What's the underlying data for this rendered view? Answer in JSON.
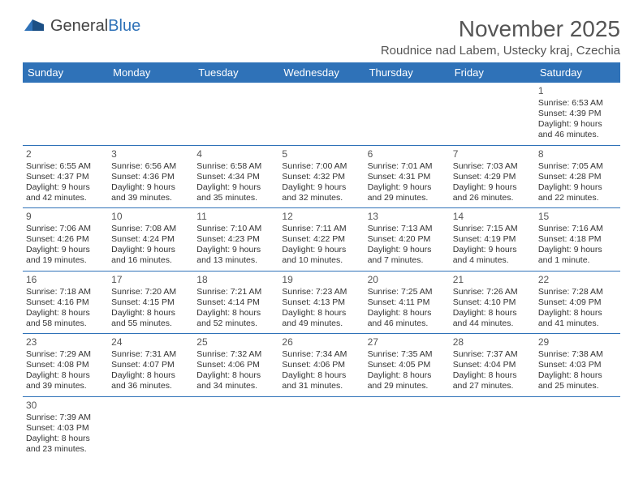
{
  "logo": {
    "text1": "General",
    "text2": "Blue"
  },
  "title": "November 2025",
  "subtitle": "Roudnice nad Labem, Ustecky kraj, Czechia",
  "colors": {
    "header_bg": "#2f72b8",
    "header_fg": "#ffffff",
    "border": "#2f72b8",
    "text": "#333333",
    "title_color": "#555555"
  },
  "dayHeaders": [
    "Sunday",
    "Monday",
    "Tuesday",
    "Wednesday",
    "Thursday",
    "Friday",
    "Saturday"
  ],
  "weeks": [
    [
      null,
      null,
      null,
      null,
      null,
      null,
      {
        "n": "1",
        "sunrise": "6:53 AM",
        "sunset": "4:39 PM",
        "daylight": "9 hours and 46 minutes."
      }
    ],
    [
      {
        "n": "2",
        "sunrise": "6:55 AM",
        "sunset": "4:37 PM",
        "daylight": "9 hours and 42 minutes."
      },
      {
        "n": "3",
        "sunrise": "6:56 AM",
        "sunset": "4:36 PM",
        "daylight": "9 hours and 39 minutes."
      },
      {
        "n": "4",
        "sunrise": "6:58 AM",
        "sunset": "4:34 PM",
        "daylight": "9 hours and 35 minutes."
      },
      {
        "n": "5",
        "sunrise": "7:00 AM",
        "sunset": "4:32 PM",
        "daylight": "9 hours and 32 minutes."
      },
      {
        "n": "6",
        "sunrise": "7:01 AM",
        "sunset": "4:31 PM",
        "daylight": "9 hours and 29 minutes."
      },
      {
        "n": "7",
        "sunrise": "7:03 AM",
        "sunset": "4:29 PM",
        "daylight": "9 hours and 26 minutes."
      },
      {
        "n": "8",
        "sunrise": "7:05 AM",
        "sunset": "4:28 PM",
        "daylight": "9 hours and 22 minutes."
      }
    ],
    [
      {
        "n": "9",
        "sunrise": "7:06 AM",
        "sunset": "4:26 PM",
        "daylight": "9 hours and 19 minutes."
      },
      {
        "n": "10",
        "sunrise": "7:08 AM",
        "sunset": "4:24 PM",
        "daylight": "9 hours and 16 minutes."
      },
      {
        "n": "11",
        "sunrise": "7:10 AM",
        "sunset": "4:23 PM",
        "daylight": "9 hours and 13 minutes."
      },
      {
        "n": "12",
        "sunrise": "7:11 AM",
        "sunset": "4:22 PM",
        "daylight": "9 hours and 10 minutes."
      },
      {
        "n": "13",
        "sunrise": "7:13 AM",
        "sunset": "4:20 PM",
        "daylight": "9 hours and 7 minutes."
      },
      {
        "n": "14",
        "sunrise": "7:15 AM",
        "sunset": "4:19 PM",
        "daylight": "9 hours and 4 minutes."
      },
      {
        "n": "15",
        "sunrise": "7:16 AM",
        "sunset": "4:18 PM",
        "daylight": "9 hours and 1 minute."
      }
    ],
    [
      {
        "n": "16",
        "sunrise": "7:18 AM",
        "sunset": "4:16 PM",
        "daylight": "8 hours and 58 minutes."
      },
      {
        "n": "17",
        "sunrise": "7:20 AM",
        "sunset": "4:15 PM",
        "daylight": "8 hours and 55 minutes."
      },
      {
        "n": "18",
        "sunrise": "7:21 AM",
        "sunset": "4:14 PM",
        "daylight": "8 hours and 52 minutes."
      },
      {
        "n": "19",
        "sunrise": "7:23 AM",
        "sunset": "4:13 PM",
        "daylight": "8 hours and 49 minutes."
      },
      {
        "n": "20",
        "sunrise": "7:25 AM",
        "sunset": "4:11 PM",
        "daylight": "8 hours and 46 minutes."
      },
      {
        "n": "21",
        "sunrise": "7:26 AM",
        "sunset": "4:10 PM",
        "daylight": "8 hours and 44 minutes."
      },
      {
        "n": "22",
        "sunrise": "7:28 AM",
        "sunset": "4:09 PM",
        "daylight": "8 hours and 41 minutes."
      }
    ],
    [
      {
        "n": "23",
        "sunrise": "7:29 AM",
        "sunset": "4:08 PM",
        "daylight": "8 hours and 39 minutes."
      },
      {
        "n": "24",
        "sunrise": "7:31 AM",
        "sunset": "4:07 PM",
        "daylight": "8 hours and 36 minutes."
      },
      {
        "n": "25",
        "sunrise": "7:32 AM",
        "sunset": "4:06 PM",
        "daylight": "8 hours and 34 minutes."
      },
      {
        "n": "26",
        "sunrise": "7:34 AM",
        "sunset": "4:06 PM",
        "daylight": "8 hours and 31 minutes."
      },
      {
        "n": "27",
        "sunrise": "7:35 AM",
        "sunset": "4:05 PM",
        "daylight": "8 hours and 29 minutes."
      },
      {
        "n": "28",
        "sunrise": "7:37 AM",
        "sunset": "4:04 PM",
        "daylight": "8 hours and 27 minutes."
      },
      {
        "n": "29",
        "sunrise": "7:38 AM",
        "sunset": "4:03 PM",
        "daylight": "8 hours and 25 minutes."
      }
    ],
    [
      {
        "n": "30",
        "sunrise": "7:39 AM",
        "sunset": "4:03 PM",
        "daylight": "8 hours and 23 minutes."
      },
      null,
      null,
      null,
      null,
      null,
      null
    ]
  ],
  "labels": {
    "sunrise": "Sunrise: ",
    "sunset": "Sunset: ",
    "daylight": "Daylight: "
  }
}
